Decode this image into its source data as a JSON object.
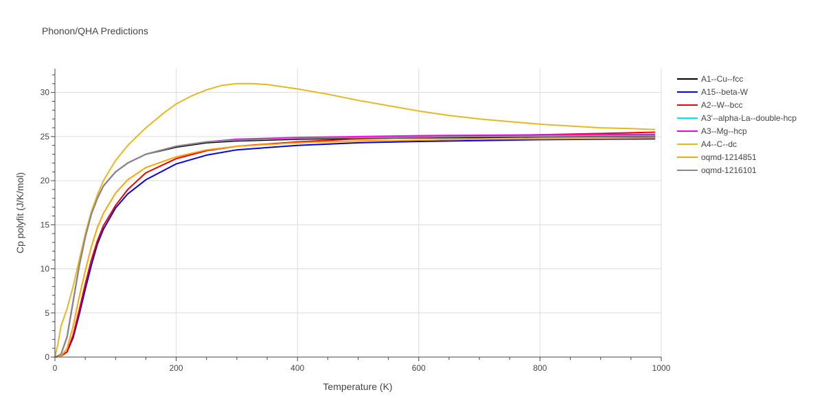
{
  "chart_data": {
    "type": "line",
    "title": "Phonon/QHA Predictions",
    "xlabel": "Temperature (K)",
    "ylabel": "Cp polyfit (J/K/mol)",
    "xlim": [
      0,
      1000
    ],
    "ylim": [
      0,
      32.7
    ],
    "xticks": [
      0,
      200,
      400,
      600,
      800,
      1000
    ],
    "yticks": [
      0,
      5,
      10,
      15,
      20,
      25,
      30
    ],
    "grid": true,
    "legend_position": "right",
    "series": [
      {
        "name": "A1--Cu--fcc",
        "color": "#000000",
        "points": [
          [
            0,
            0
          ],
          [
            10,
            0.3
          ],
          [
            20,
            2.3
          ],
          [
            30,
            6.3
          ],
          [
            40,
            10.3
          ],
          [
            50,
            13.6
          ],
          [
            60,
            16.2
          ],
          [
            70,
            18.0
          ],
          [
            80,
            19.4
          ],
          [
            100,
            21.0
          ],
          [
            120,
            22.0
          ],
          [
            150,
            23.0
          ],
          [
            200,
            23.8
          ],
          [
            250,
            24.3
          ],
          [
            300,
            24.5
          ],
          [
            400,
            24.7
          ],
          [
            500,
            24.8
          ],
          [
            600,
            24.85
          ],
          [
            700,
            24.9
          ],
          [
            800,
            24.95
          ],
          [
            900,
            25.0
          ],
          [
            990,
            25.0
          ]
        ]
      },
      {
        "name": "A15--beta-W",
        "color": "#0000ee",
        "points": [
          [
            0,
            0
          ],
          [
            10,
            0.1
          ],
          [
            20,
            0.6
          ],
          [
            30,
            2.2
          ],
          [
            40,
            4.8
          ],
          [
            50,
            7.7
          ],
          [
            60,
            10.4
          ],
          [
            70,
            12.8
          ],
          [
            80,
            14.5
          ],
          [
            100,
            16.9
          ],
          [
            120,
            18.5
          ],
          [
            150,
            20.1
          ],
          [
            200,
            21.9
          ],
          [
            250,
            22.9
          ],
          [
            300,
            23.5
          ],
          [
            400,
            24.0
          ],
          [
            500,
            24.3
          ],
          [
            600,
            24.45
          ],
          [
            700,
            24.55
          ],
          [
            800,
            24.65
          ],
          [
            900,
            24.7
          ],
          [
            990,
            24.75
          ]
        ]
      },
      {
        "name": "A2--W--bcc",
        "color": "#ee0000",
        "points": [
          [
            0,
            0
          ],
          [
            10,
            0.1
          ],
          [
            20,
            0.6
          ],
          [
            30,
            2.5
          ],
          [
            40,
            5.3
          ],
          [
            50,
            8.3
          ],
          [
            60,
            11.0
          ],
          [
            70,
            13.2
          ],
          [
            80,
            14.9
          ],
          [
            100,
            17.2
          ],
          [
            120,
            19.0
          ],
          [
            150,
            20.9
          ],
          [
            200,
            22.5
          ],
          [
            250,
            23.4
          ],
          [
            300,
            23.9
          ],
          [
            400,
            24.4
          ],
          [
            500,
            24.75
          ],
          [
            600,
            24.9
          ],
          [
            700,
            25.05
          ],
          [
            800,
            25.2
          ],
          [
            900,
            25.35
          ],
          [
            990,
            25.5
          ]
        ]
      },
      {
        "name": "A3'--alpha-La--double-hcp",
        "color": "#00e5ee",
        "points": [
          [
            0,
            0
          ],
          [
            10,
            0.3
          ],
          [
            20,
            2.3
          ],
          [
            30,
            6.3
          ],
          [
            40,
            10.3
          ],
          [
            50,
            13.6
          ],
          [
            60,
            16.2
          ],
          [
            70,
            18.0
          ],
          [
            80,
            19.4
          ],
          [
            100,
            21.0
          ],
          [
            120,
            22.0
          ],
          [
            150,
            23.0
          ],
          [
            200,
            23.9
          ],
          [
            250,
            24.4
          ],
          [
            300,
            24.6
          ],
          [
            400,
            24.8
          ],
          [
            500,
            24.9
          ],
          [
            600,
            24.95
          ],
          [
            700,
            25.0
          ],
          [
            800,
            25.05
          ],
          [
            900,
            25.1
          ],
          [
            990,
            25.1
          ]
        ]
      },
      {
        "name": "A3--Mg--hcp",
        "color": "#ee00ee",
        "points": [
          [
            0,
            0
          ],
          [
            10,
            0.3
          ],
          [
            20,
            2.3
          ],
          [
            30,
            6.3
          ],
          [
            40,
            10.3
          ],
          [
            50,
            13.6
          ],
          [
            60,
            16.2
          ],
          [
            70,
            18.0
          ],
          [
            80,
            19.4
          ],
          [
            100,
            21.0
          ],
          [
            120,
            22.0
          ],
          [
            150,
            23.0
          ],
          [
            200,
            23.9
          ],
          [
            250,
            24.4
          ],
          [
            300,
            24.7
          ],
          [
            400,
            24.9
          ],
          [
            500,
            25.0
          ],
          [
            600,
            25.1
          ],
          [
            700,
            25.15
          ],
          [
            800,
            25.2
          ],
          [
            900,
            25.25
          ],
          [
            990,
            25.25
          ]
        ]
      },
      {
        "name": "A4--C--dc",
        "color": "#e6b820",
        "points": [
          [
            0,
            0
          ],
          [
            5,
            1.5
          ],
          [
            10,
            3.5
          ],
          [
            20,
            5.5
          ],
          [
            30,
            8.0
          ],
          [
            40,
            11.0
          ],
          [
            50,
            14.0
          ],
          [
            60,
            16.5
          ],
          [
            70,
            18.4
          ],
          [
            80,
            20.0
          ],
          [
            100,
            22.3
          ],
          [
            120,
            24.0
          ],
          [
            150,
            26.0
          ],
          [
            180,
            27.7
          ],
          [
            200,
            28.7
          ],
          [
            225,
            29.6
          ],
          [
            250,
            30.3
          ],
          [
            275,
            30.8
          ],
          [
            300,
            31.0
          ],
          [
            325,
            31.0
          ],
          [
            350,
            30.9
          ],
          [
            400,
            30.4
          ],
          [
            450,
            29.8
          ],
          [
            500,
            29.1
          ],
          [
            550,
            28.5
          ],
          [
            600,
            27.9
          ],
          [
            650,
            27.4
          ],
          [
            700,
            27.0
          ],
          [
            750,
            26.7
          ],
          [
            800,
            26.4
          ],
          [
            850,
            26.2
          ],
          [
            900,
            26.0
          ],
          [
            950,
            25.9
          ],
          [
            990,
            25.8
          ]
        ]
      },
      {
        "name": "oqmd-1214851",
        "color": "#ffa500",
        "points": [
          [
            0,
            0
          ],
          [
            10,
            0.1
          ],
          [
            20,
            1.0
          ],
          [
            30,
            3.5
          ],
          [
            40,
            6.8
          ],
          [
            50,
            9.8
          ],
          [
            60,
            12.5
          ],
          [
            70,
            14.7
          ],
          [
            80,
            16.3
          ],
          [
            100,
            18.6
          ],
          [
            120,
            20.1
          ],
          [
            150,
            21.5
          ],
          [
            200,
            22.7
          ],
          [
            250,
            23.5
          ],
          [
            300,
            23.9
          ],
          [
            400,
            24.3
          ],
          [
            500,
            24.5
          ],
          [
            600,
            24.6
          ],
          [
            700,
            24.7
          ],
          [
            800,
            24.75
          ],
          [
            900,
            24.8
          ],
          [
            990,
            24.85
          ]
        ]
      },
      {
        "name": "oqmd-1216101",
        "color": "#888888",
        "points": [
          [
            0,
            0
          ],
          [
            10,
            0.3
          ],
          [
            20,
            2.3
          ],
          [
            30,
            6.3
          ],
          [
            40,
            10.3
          ],
          [
            50,
            13.6
          ],
          [
            60,
            16.2
          ],
          [
            70,
            18.0
          ],
          [
            80,
            19.4
          ],
          [
            100,
            21.0
          ],
          [
            120,
            22.0
          ],
          [
            150,
            23.0
          ],
          [
            200,
            23.9
          ],
          [
            250,
            24.4
          ],
          [
            300,
            24.6
          ],
          [
            400,
            24.8
          ],
          [
            500,
            24.9
          ],
          [
            600,
            24.95
          ],
          [
            700,
            25.0
          ],
          [
            800,
            25.0
          ],
          [
            900,
            25.05
          ],
          [
            990,
            25.05
          ]
        ]
      }
    ]
  }
}
